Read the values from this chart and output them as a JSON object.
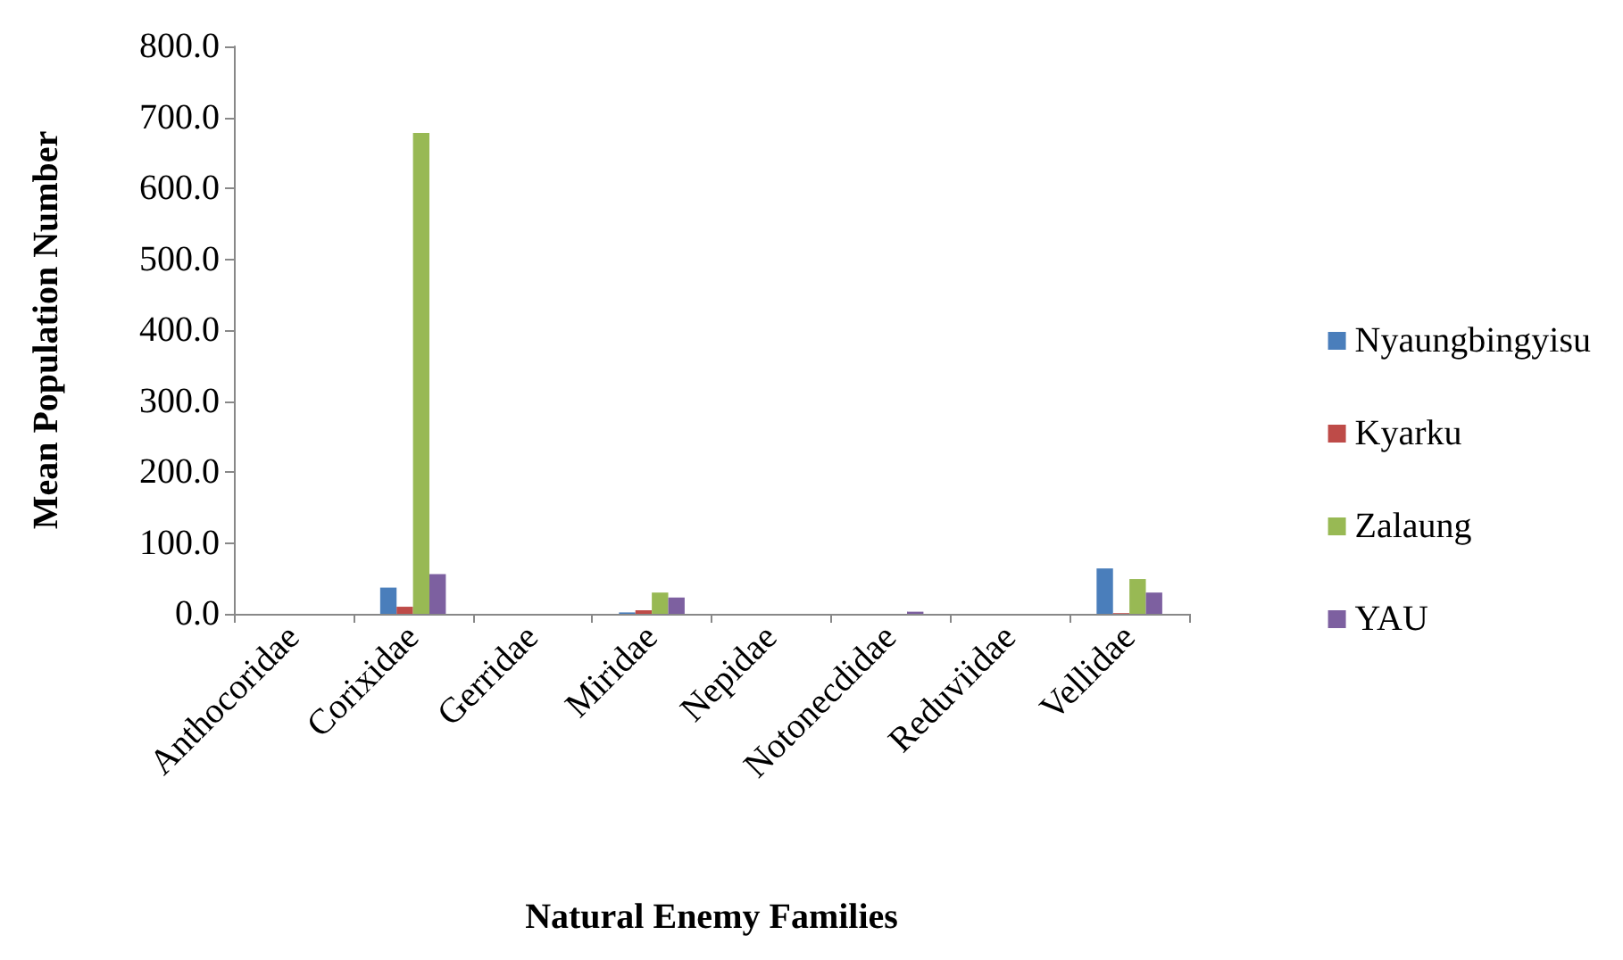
{
  "chart_data": {
    "type": "bar",
    "xlabel": "Natural Enemy Families",
    "ylabel": "Mean Population Number",
    "categories": [
      "Anthocoridae",
      "Corixidae",
      "Gerridae",
      "Miridae",
      "Nepidae",
      "Notonecdidae",
      "Reduviidae",
      "Vellidae"
    ],
    "series": [
      {
        "name": "Nyaungbingyisu",
        "color": "#4a7ebb",
        "values": [
          0,
          37,
          0,
          2,
          0,
          0,
          0,
          64
        ]
      },
      {
        "name": "Kyarku",
        "color": "#be4b48",
        "values": [
          0,
          10,
          0,
          5,
          0,
          0,
          0,
          1
        ]
      },
      {
        "name": "Zalaung",
        "color": "#98b954",
        "values": [
          0,
          678,
          0,
          30,
          0,
          0,
          0,
          49
        ]
      },
      {
        "name": "YAU",
        "color": "#7d60a0",
        "values": [
          0,
          56,
          0,
          23,
          0,
          3,
          0,
          30
        ]
      }
    ],
    "ylim": [
      0,
      800
    ],
    "yticks": [
      {
        "value": 0,
        "label": "0.0"
      },
      {
        "value": 100,
        "label": "100.0"
      },
      {
        "value": 200,
        "label": "200.0"
      },
      {
        "value": 300,
        "label": "300.0"
      },
      {
        "value": 400,
        "label": "400.0"
      },
      {
        "value": 500,
        "label": "500.0"
      },
      {
        "value": 600,
        "label": "600.0"
      },
      {
        "value": 700,
        "label": "700.0"
      },
      {
        "value": 800,
        "label": "800.0"
      }
    ],
    "grid": false,
    "legend": "right"
  }
}
